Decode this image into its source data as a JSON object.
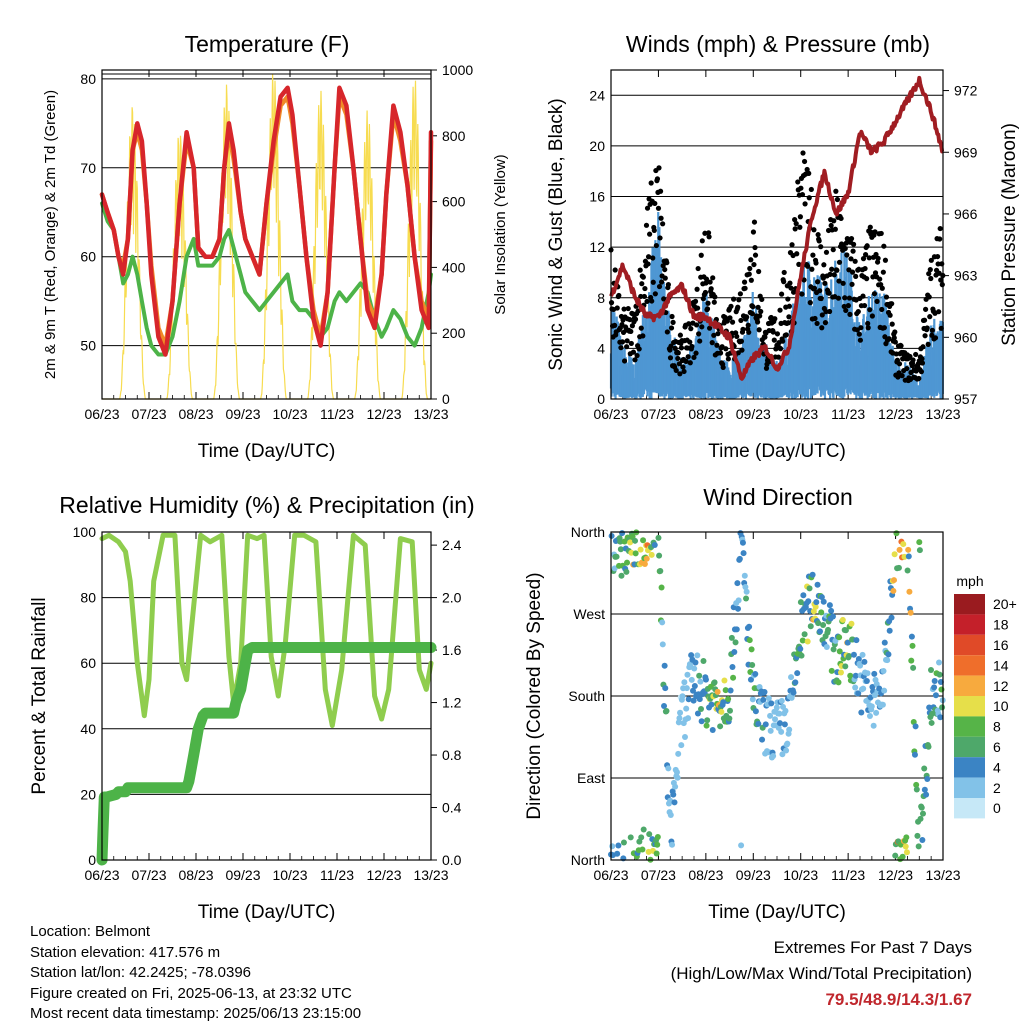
{
  "x_ticks": [
    "06/23",
    "07/23",
    "08/23",
    "09/23",
    "10/23",
    "11/23",
    "12/23",
    "13/23"
  ],
  "colors": {
    "temp_red": "#d7262b",
    "temp_orange": "#f08a28",
    "dewpoint_green": "#4db348",
    "solar_yellow": "#f7dc50",
    "wind_blue": "#4f97d3",
    "gust_black": "#000000",
    "pressure_maroon": "#a01d22",
    "rh_light_green": "#8fcd4e",
    "precip_green": "#4db348",
    "extremes_red": "#c0272d"
  },
  "chart_data": [
    {
      "id": "temperature",
      "type": "line",
      "title": "Temperature (F)",
      "xlabel": "Time (Day/UTC)",
      "ylabel": "2m & 9m T (Red, Orange) & 2m Td (Green)",
      "y2label": "Solar Insolation (Yellow)",
      "xlim": [
        0,
        7
      ],
      "ylim": [
        44,
        81
      ],
      "yticks": [
        50,
        60,
        70,
        80
      ],
      "y2lim": [
        0,
        1000
      ],
      "y2ticks": [
        0,
        200,
        400,
        600,
        800,
        1000
      ],
      "x": [
        0,
        0.12,
        0.25,
        0.35,
        0.45,
        0.55,
        0.65,
        0.75,
        0.85,
        0.95,
        1.05,
        1.2,
        1.35,
        1.5,
        1.65,
        1.8,
        1.95,
        2.05,
        2.2,
        2.35,
        2.5,
        2.6,
        2.7,
        2.8,
        2.95,
        3.05,
        3.2,
        3.35,
        3.5,
        3.65,
        3.8,
        3.95,
        4.05,
        4.2,
        4.35,
        4.5,
        4.65,
        4.8,
        4.95,
        5.05,
        5.2,
        5.35,
        5.5,
        5.65,
        5.8,
        5.95,
        6.05,
        6.2,
        6.35,
        6.5,
        6.65,
        6.8,
        6.95,
        7.0
      ],
      "series": [
        {
          "name": "2m T",
          "color": "#d7262b",
          "values": [
            67,
            65,
            63,
            60,
            58,
            62,
            72,
            75,
            73,
            66,
            58,
            51,
            49,
            55,
            66,
            74,
            70,
            61,
            60,
            60,
            62,
            70,
            75,
            72,
            65,
            62,
            60,
            58,
            66,
            73,
            78,
            79,
            76,
            68,
            60,
            53,
            50,
            56,
            70,
            79,
            77,
            70,
            62,
            54,
            52,
            58,
            67,
            77,
            74,
            68,
            60,
            54,
            52,
            74
          ]
        },
        {
          "name": "9m T",
          "color": "#f08a28",
          "values": [
            67,
            65,
            63,
            60,
            59,
            62,
            72,
            74,
            72,
            66,
            59,
            52,
            50,
            55,
            66,
            73,
            70,
            61,
            60,
            60,
            62,
            70,
            74,
            71,
            65,
            62,
            60,
            58,
            66,
            72,
            77,
            78,
            75,
            68,
            60,
            54,
            51,
            56,
            70,
            78,
            76,
            70,
            62,
            55,
            53,
            58,
            67,
            76,
            73,
            68,
            60,
            55,
            53,
            73
          ]
        },
        {
          "name": "2m Td",
          "color": "#4db348",
          "values": [
            66,
            64,
            63,
            60,
            57,
            58,
            60,
            58,
            55,
            52,
            50,
            49,
            49,
            51,
            55,
            60,
            62,
            59,
            59,
            59,
            60,
            62,
            63,
            61,
            58,
            56,
            55,
            54,
            55,
            56,
            57,
            58,
            55,
            54,
            54,
            53,
            51,
            52,
            55,
            56,
            55,
            56,
            57,
            56,
            53,
            51,
            52,
            54,
            53,
            51,
            50,
            52,
            56,
            58
          ]
        },
        {
          "name": "Solar Insolation",
          "color": "#f7dc50",
          "axis": "y2",
          "peaks": [
            {
              "x": 0.65,
              "value": 900
            },
            {
              "x": 1.65,
              "value": 820
            },
            {
              "x": 2.65,
              "value": 960
            },
            {
              "x": 3.65,
              "value": 1000
            },
            {
              "x": 4.65,
              "value": 940
            },
            {
              "x": 5.65,
              "value": 880
            },
            {
              "x": 6.65,
              "value": 980
            }
          ]
        }
      ]
    },
    {
      "id": "winds",
      "type": "scatter",
      "title": "Winds (mph) & Pressure (mb)",
      "xlabel": "Time (Day/UTC)",
      "ylabel": "Sonic Wind & Gust (Blue, Black)",
      "y2label": "Station Pressure (Maroon)",
      "xlim": [
        0,
        7
      ],
      "ylim": [
        0,
        26
      ],
      "yticks": [
        0,
        4,
        8,
        12,
        16,
        20,
        24
      ],
      "y2lim": [
        957,
        973
      ],
      "y2ticks": [
        957,
        960,
        963,
        966,
        969,
        972
      ],
      "x": [
        0,
        0.25,
        0.5,
        0.75,
        1.0,
        1.25,
        1.5,
        1.75,
        2.0,
        2.25,
        2.5,
        2.75,
        3.0,
        3.25,
        3.5,
        3.75,
        4.0,
        4.25,
        4.5,
        4.75,
        5.0,
        5.25,
        5.5,
        5.75,
        6.0,
        6.25,
        6.5,
        6.75,
        7.0
      ],
      "series": [
        {
          "name": "Sonic Wind",
          "color": "#4f97d3",
          "values": [
            6,
            3,
            2,
            6,
            10,
            4,
            2,
            3,
            6,
            3,
            2,
            3,
            6,
            3,
            2,
            4,
            7,
            8,
            6,
            8,
            8,
            4,
            6,
            6,
            2,
            2,
            1,
            4,
            6
          ]
        },
        {
          "name": "Gust",
          "color": "#000000",
          "values": [
            10,
            6,
            6,
            13,
            17,
            6,
            4,
            7,
            13,
            5,
            6,
            8,
            13,
            5,
            6,
            10,
            17,
            14,
            10,
            14,
            12,
            9,
            12,
            11,
            4,
            3,
            3,
            10,
            12
          ]
        },
        {
          "name": "Station Pressure",
          "color": "#a01d22",
          "axis": "y2",
          "values": [
            962,
            963.5,
            962,
            961,
            961,
            962,
            962.5,
            961,
            961,
            960.5,
            960,
            958,
            959,
            959.5,
            958.5,
            959.5,
            963,
            966,
            968,
            966,
            967,
            970,
            969,
            969.5,
            970.5,
            971.5,
            972.5,
            971,
            969
          ]
        }
      ]
    },
    {
      "id": "humidity",
      "type": "line",
      "title": "Relative Humidity (%) & Precipitation (in)",
      "xlabel": "Time (Day/UTC)",
      "ylabel": "Percent & Total Rainfall",
      "xlim": [
        0,
        7
      ],
      "ylim": [
        0,
        100
      ],
      "yticks": [
        0,
        20,
        40,
        60,
        80,
        100
      ],
      "y2lim": [
        0,
        2.5
      ],
      "y2ticks": [
        0.0,
        0.4,
        0.8,
        1.2,
        1.6,
        2.0,
        2.4
      ],
      "series": [
        {
          "name": "Relative Humidity",
          "color": "#8fcd4e",
          "x": [
            0,
            0.15,
            0.35,
            0.5,
            0.6,
            0.75,
            0.9,
            1.0,
            1.1,
            1.3,
            1.55,
            1.7,
            1.8,
            1.9,
            2.1,
            2.3,
            2.55,
            2.7,
            2.8,
            2.95,
            3.1,
            3.3,
            3.45,
            3.6,
            3.75,
            3.9,
            4.1,
            4.3,
            4.55,
            4.75,
            4.9,
            5.1,
            5.35,
            5.6,
            5.8,
            5.95,
            6.1,
            6.35,
            6.6,
            6.75,
            6.9,
            7.0
          ],
          "values": [
            98,
            99,
            97,
            94,
            85,
            60,
            44,
            55,
            85,
            99,
            99,
            60,
            55,
            70,
            99,
            97,
            99,
            62,
            48,
            60,
            99,
            98,
            99,
            62,
            50,
            66,
            99,
            99,
            97,
            52,
            41,
            58,
            99,
            96,
            50,
            43,
            52,
            98,
            97,
            58,
            52,
            60
          ]
        },
        {
          "name": "Total Precipitation",
          "color": "#4db348",
          "axis": "y2",
          "x": [
            0,
            0.02,
            0.05,
            0.1,
            0.3,
            0.35,
            0.5,
            0.55,
            1.8,
            1.85,
            1.9,
            1.95,
            2.05,
            2.15,
            2.2,
            2.8,
            2.85,
            2.9,
            2.95,
            3.05,
            3.1,
            3.2,
            7.0
          ],
          "values": [
            0,
            0.2,
            0.48,
            0.48,
            0.5,
            0.52,
            0.52,
            0.55,
            0.55,
            0.6,
            0.7,
            0.8,
            1.0,
            1.1,
            1.12,
            1.12,
            1.2,
            1.25,
            1.3,
            1.5,
            1.6,
            1.62,
            1.62
          ]
        }
      ]
    },
    {
      "id": "wind_direction",
      "type": "scatter",
      "title": "Wind Direction",
      "xlabel": "Time (Day/UTC)",
      "ylabel": "Direction (Colored By Speed)",
      "xlim": [
        0,
        7
      ],
      "ylim": [
        0,
        360
      ],
      "yticks": [
        0,
        90,
        180,
        270,
        360
      ],
      "yticklabels": [
        "North",
        "East",
        "South",
        "West",
        "North"
      ],
      "legend": {
        "title": "mph",
        "labels": [
          "0",
          "2",
          "4",
          "6",
          "8",
          "10",
          "12",
          "14",
          "16",
          "18",
          "20+"
        ],
        "colors": [
          "#c6e8f7",
          "#82c2e8",
          "#3b84c4",
          "#4ea86a",
          "#56b448",
          "#e6df4a",
          "#f7aa3e",
          "#ef6e2b",
          "#e04a28",
          "#c4202a",
          "#9a1b1f"
        ]
      },
      "x": [
        0,
        0.25,
        0.5,
        0.75,
        1.0,
        1.25,
        1.5,
        1.75,
        2.0,
        2.25,
        2.5,
        2.75,
        3.0,
        3.25,
        3.5,
        3.75,
        4.0,
        4.25,
        4.5,
        4.75,
        5.0,
        5.25,
        5.5,
        5.75,
        6.0,
        6.25,
        6.5,
        6.75,
        7.0
      ],
      "values": [
        350,
        345,
        355,
        360,
        355,
        30,
        160,
        200,
        180,
        175,
        185,
        350,
        175,
        150,
        140,
        150,
        250,
        290,
        270,
        220,
        240,
        200,
        170,
        190,
        350,
        355,
        5,
        180,
        190
      ],
      "speeds": [
        6,
        8,
        10,
        12,
        8,
        3,
        2,
        4,
        8,
        10,
        8,
        4,
        8,
        4,
        3,
        4,
        8,
        10,
        6,
        8,
        10,
        4,
        4,
        3,
        14,
        12,
        8,
        6,
        8
      ]
    }
  ],
  "footer": {
    "location": "Location: Belmont",
    "elevation": "Station elevation: 417.576 m",
    "latlon": "Station lat/lon: 42.2425; -78.0396",
    "created": "Figure created on Fri, 2025-06-13, at 23:32 UTC",
    "recent": "Most recent data timestamp: 2025/06/13 23:15:00"
  },
  "extremes": {
    "title": "Extremes For Past 7 Days",
    "subtitle": "(High/Low/Max Wind/Total Precipitation)",
    "values": "79.5/48.9/14.3/1.67"
  }
}
